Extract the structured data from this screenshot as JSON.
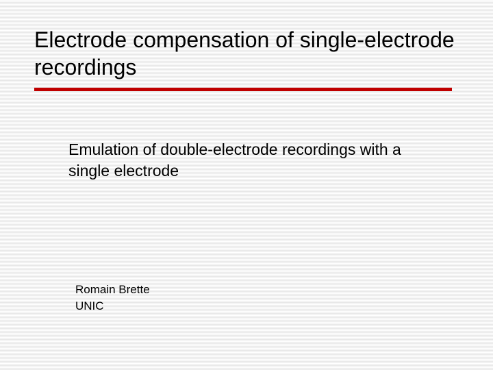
{
  "slide": {
    "title": "Electrode compensation of single-electrode recordings",
    "subtitle": "Emulation of double-electrode recordings with a single electrode",
    "author_name": "Romain Brette",
    "author_affiliation": "UNIC",
    "divider_color": "#c00000",
    "background_color": "#ffffff",
    "stripe_color": "#e8e8e8",
    "text_color": "#000000",
    "title_fontsize": 32,
    "subtitle_fontsize": 23,
    "author_fontsize": 17
  }
}
